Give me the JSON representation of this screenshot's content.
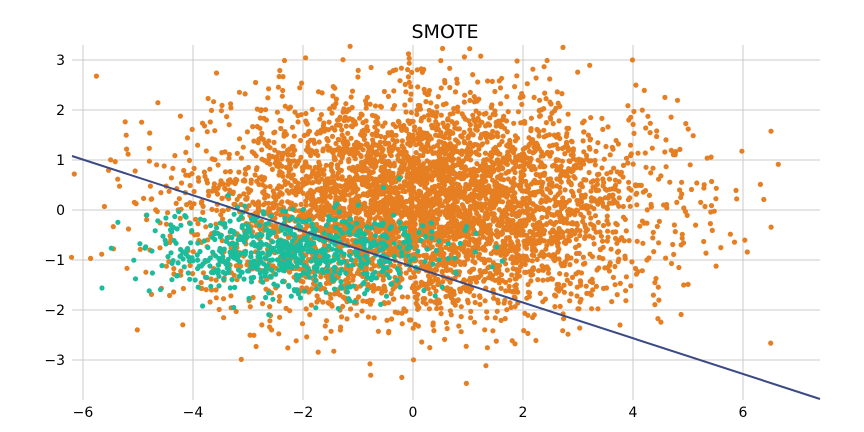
{
  "chart_data": {
    "type": "scatter",
    "title": "SMOTE",
    "xlabel": "",
    "ylabel": "",
    "xlim": [
      -6.2,
      7.4
    ],
    "ylim": [
      -3.8,
      3.3
    ],
    "grid": true,
    "legend": "none",
    "x_ticks": [
      -6,
      -4,
      -2,
      0,
      2,
      4,
      6
    ],
    "y_ticks": [
      -3,
      -2,
      -1,
      0,
      1,
      2,
      3
    ],
    "x_tick_labels": [
      "−6",
      "−4",
      "−2",
      "0",
      "2",
      "4",
      "6"
    ],
    "y_tick_labels": [
      "−3",
      "−2",
      "−1",
      "0",
      "1",
      "2",
      "3"
    ],
    "series": [
      {
        "kind": "points",
        "color": "#e67e22",
        "count_estimate": 5000,
        "distribution": {
          "center": [
            0.2,
            0.1
          ],
          "spread": [
            2.0,
            1.05
          ]
        }
      },
      {
        "kind": "points",
        "color": "#1abc9c",
        "count_estimate": 700,
        "distribution": {
          "center": [
            -2.2,
            -0.85
          ],
          "spread": [
            1.3,
            0.42
          ]
        }
      },
      {
        "kind": "line",
        "color": "#3b4a85",
        "x": [
          -6.2,
          7.4
        ],
        "y": [
          1.08,
          -3.78
        ]
      }
    ]
  }
}
